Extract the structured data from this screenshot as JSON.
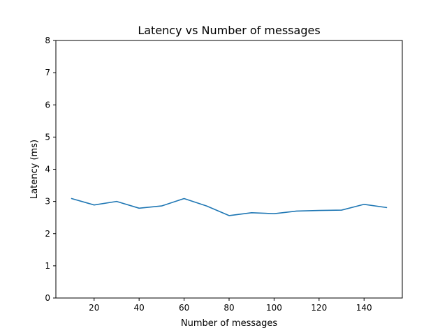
{
  "chart_data": {
    "type": "line",
    "title": "Latency vs Number of messages",
    "xlabel": "Number of messages",
    "ylabel": "Latency (ms)",
    "x": [
      10,
      20,
      30,
      40,
      50,
      60,
      70,
      80,
      90,
      100,
      110,
      120,
      130,
      140,
      150
    ],
    "series": [
      {
        "values": [
          3.09,
          2.89,
          3.0,
          2.79,
          2.86,
          3.09,
          2.86,
          2.56,
          2.65,
          2.62,
          2.7,
          2.72,
          2.73,
          2.91,
          2.81
        ]
      }
    ],
    "xlim": [
      3,
      157
    ],
    "ylim": [
      0,
      8
    ],
    "xticks": [
      20,
      40,
      60,
      80,
      100,
      120,
      140
    ],
    "yticks": [
      0,
      1,
      2,
      3,
      4,
      5,
      6,
      7,
      8
    ],
    "grid": false,
    "colors": {
      "series": "#1f77b4"
    }
  }
}
